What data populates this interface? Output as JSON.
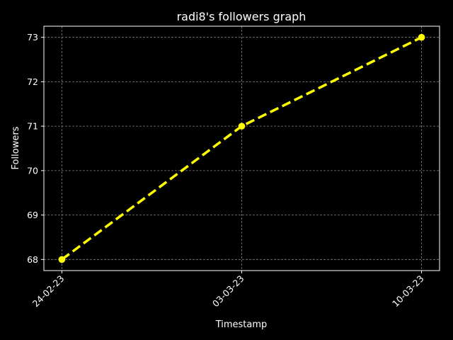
{
  "chart_data": {
    "type": "line",
    "title": "radi8's followers graph",
    "xlabel": "Timestamp",
    "ylabel": "Followers",
    "categories": [
      "24-02-23",
      "03-03-23",
      "10-03-23"
    ],
    "series": [
      {
        "values": [
          68,
          71,
          73
        ],
        "color": "#ffff00",
        "line_style": "dashed",
        "marker": "circle"
      }
    ],
    "ylim": [
      67.75,
      73.25
    ],
    "yticks": [
      68,
      69,
      70,
      71,
      72,
      73
    ],
    "grid": true,
    "grid_style": "dashed",
    "background": "#000000",
    "text_color": "#ffffff",
    "grid_color": "#808080",
    "xtick_rotation": 45
  }
}
